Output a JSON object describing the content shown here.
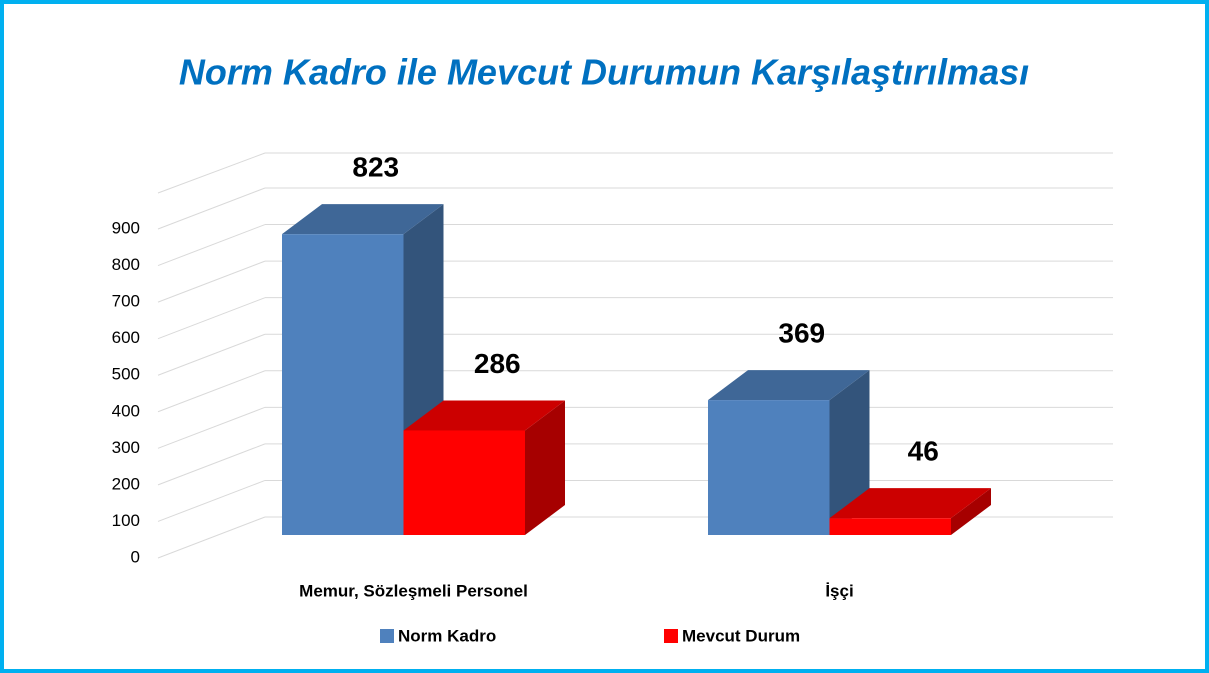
{
  "chart_data": {
    "type": "bar3d",
    "title": "Norm Kadro ile Mevcut Durumun Karşılaştırılması",
    "categories": [
      "Memur, Sözleşmeli Personel",
      "İşçi"
    ],
    "series": [
      {
        "name": "Norm Kadro",
        "color": "#4f81bd",
        "values": [
          823,
          369
        ]
      },
      {
        "name": "Mevcut Durum",
        "color": "#ff0000",
        "values": [
          286,
          46
        ]
      }
    ],
    "ylim": [
      0,
      900
    ],
    "yticks": [
      0,
      100,
      200,
      300,
      400,
      500,
      600,
      700,
      800,
      900
    ],
    "grid": true,
    "legend": "bottom"
  }
}
